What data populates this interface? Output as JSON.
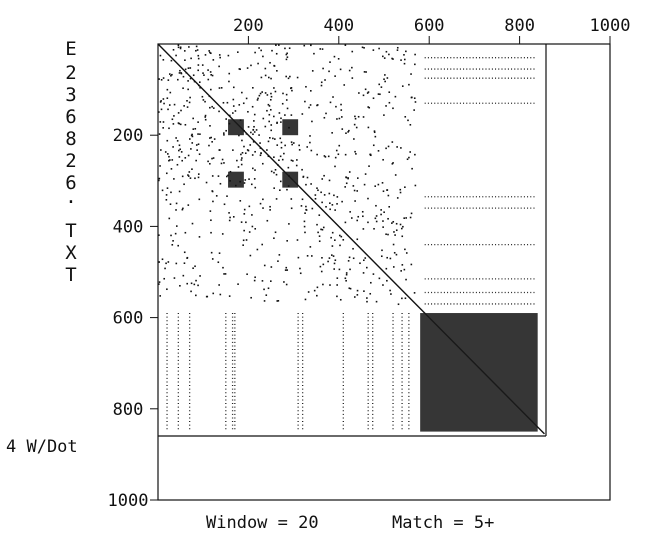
{
  "chart_data": {
    "type": "scatter",
    "title": "",
    "xlabel": "",
    "ylabel": "E2368826.TXT",
    "x_ticks": [
      200,
      400,
      600,
      800,
      1000
    ],
    "y_ticks": [
      200,
      400,
      600,
      800,
      1000
    ],
    "xlim": [
      0,
      1000
    ],
    "ylim": [
      0,
      1000
    ],
    "sequence_length": 855,
    "window": 20,
    "match_min": 5,
    "dot_scale": "4 W/Dot",
    "footer": {
      "window_text": "Window = 20",
      "match_text": "Match =  5+"
    },
    "ylabel_chars": [
      "E",
      "2",
      "3",
      "6",
      "8",
      "2",
      "6",
      ".",
      "T",
      "X",
      "T"
    ],
    "diagonal": [
      [
        0,
        0
      ],
      [
        855,
        855
      ]
    ],
    "dense_blocks": [
      {
        "x": [
          155,
          190
        ],
        "y": [
          165,
          200
        ]
      },
      {
        "x": [
          275,
          310
        ],
        "y": [
          165,
          200
        ]
      },
      {
        "x": [
          155,
          190
        ],
        "y": [
          280,
          315
        ]
      },
      {
        "x": [
          275,
          310
        ],
        "y": [
          280,
          315
        ]
      },
      {
        "x": [
          580,
          840
        ],
        "y": [
          590,
          850
        ]
      }
    ],
    "horizontal_dotted_rows": [
      {
        "y": 30,
        "x": [
          590,
          835
        ]
      },
      {
        "y": 55,
        "x": [
          590,
          835
        ]
      },
      {
        "y": 75,
        "x": [
          590,
          835
        ]
      },
      {
        "y": 130,
        "x": [
          590,
          835
        ]
      },
      {
        "y": 335,
        "x": [
          590,
          835
        ]
      },
      {
        "y": 360,
        "x": [
          590,
          835
        ]
      },
      {
        "y": 440,
        "x": [
          590,
          835
        ]
      },
      {
        "y": 515,
        "x": [
          590,
          835
        ]
      },
      {
        "y": 545,
        "x": [
          590,
          835
        ]
      },
      {
        "y": 570,
        "x": [
          590,
          835
        ]
      }
    ],
    "vertical_dotted_cols": [
      {
        "x": 20,
        "y": [
          590,
          850
        ]
      },
      {
        "x": 45,
        "y": [
          590,
          850
        ]
      },
      {
        "x": 70,
        "y": [
          590,
          850
        ]
      },
      {
        "x": 150,
        "y": [
          590,
          850
        ]
      },
      {
        "x": 165,
        "y": [
          590,
          850
        ]
      },
      {
        "x": 170,
        "y": [
          590,
          850
        ]
      },
      {
        "x": 310,
        "y": [
          590,
          850
        ]
      },
      {
        "x": 320,
        "y": [
          590,
          850
        ]
      },
      {
        "x": 410,
        "y": [
          590,
          850
        ]
      },
      {
        "x": 465,
        "y": [
          590,
          850
        ]
      },
      {
        "x": 475,
        "y": [
          590,
          850
        ]
      },
      {
        "x": 520,
        "y": [
          590,
          850
        ]
      },
      {
        "x": 540,
        "y": [
          590,
          850
        ]
      },
      {
        "x": 555,
        "y": [
          590,
          850
        ]
      }
    ],
    "grid": false
  }
}
